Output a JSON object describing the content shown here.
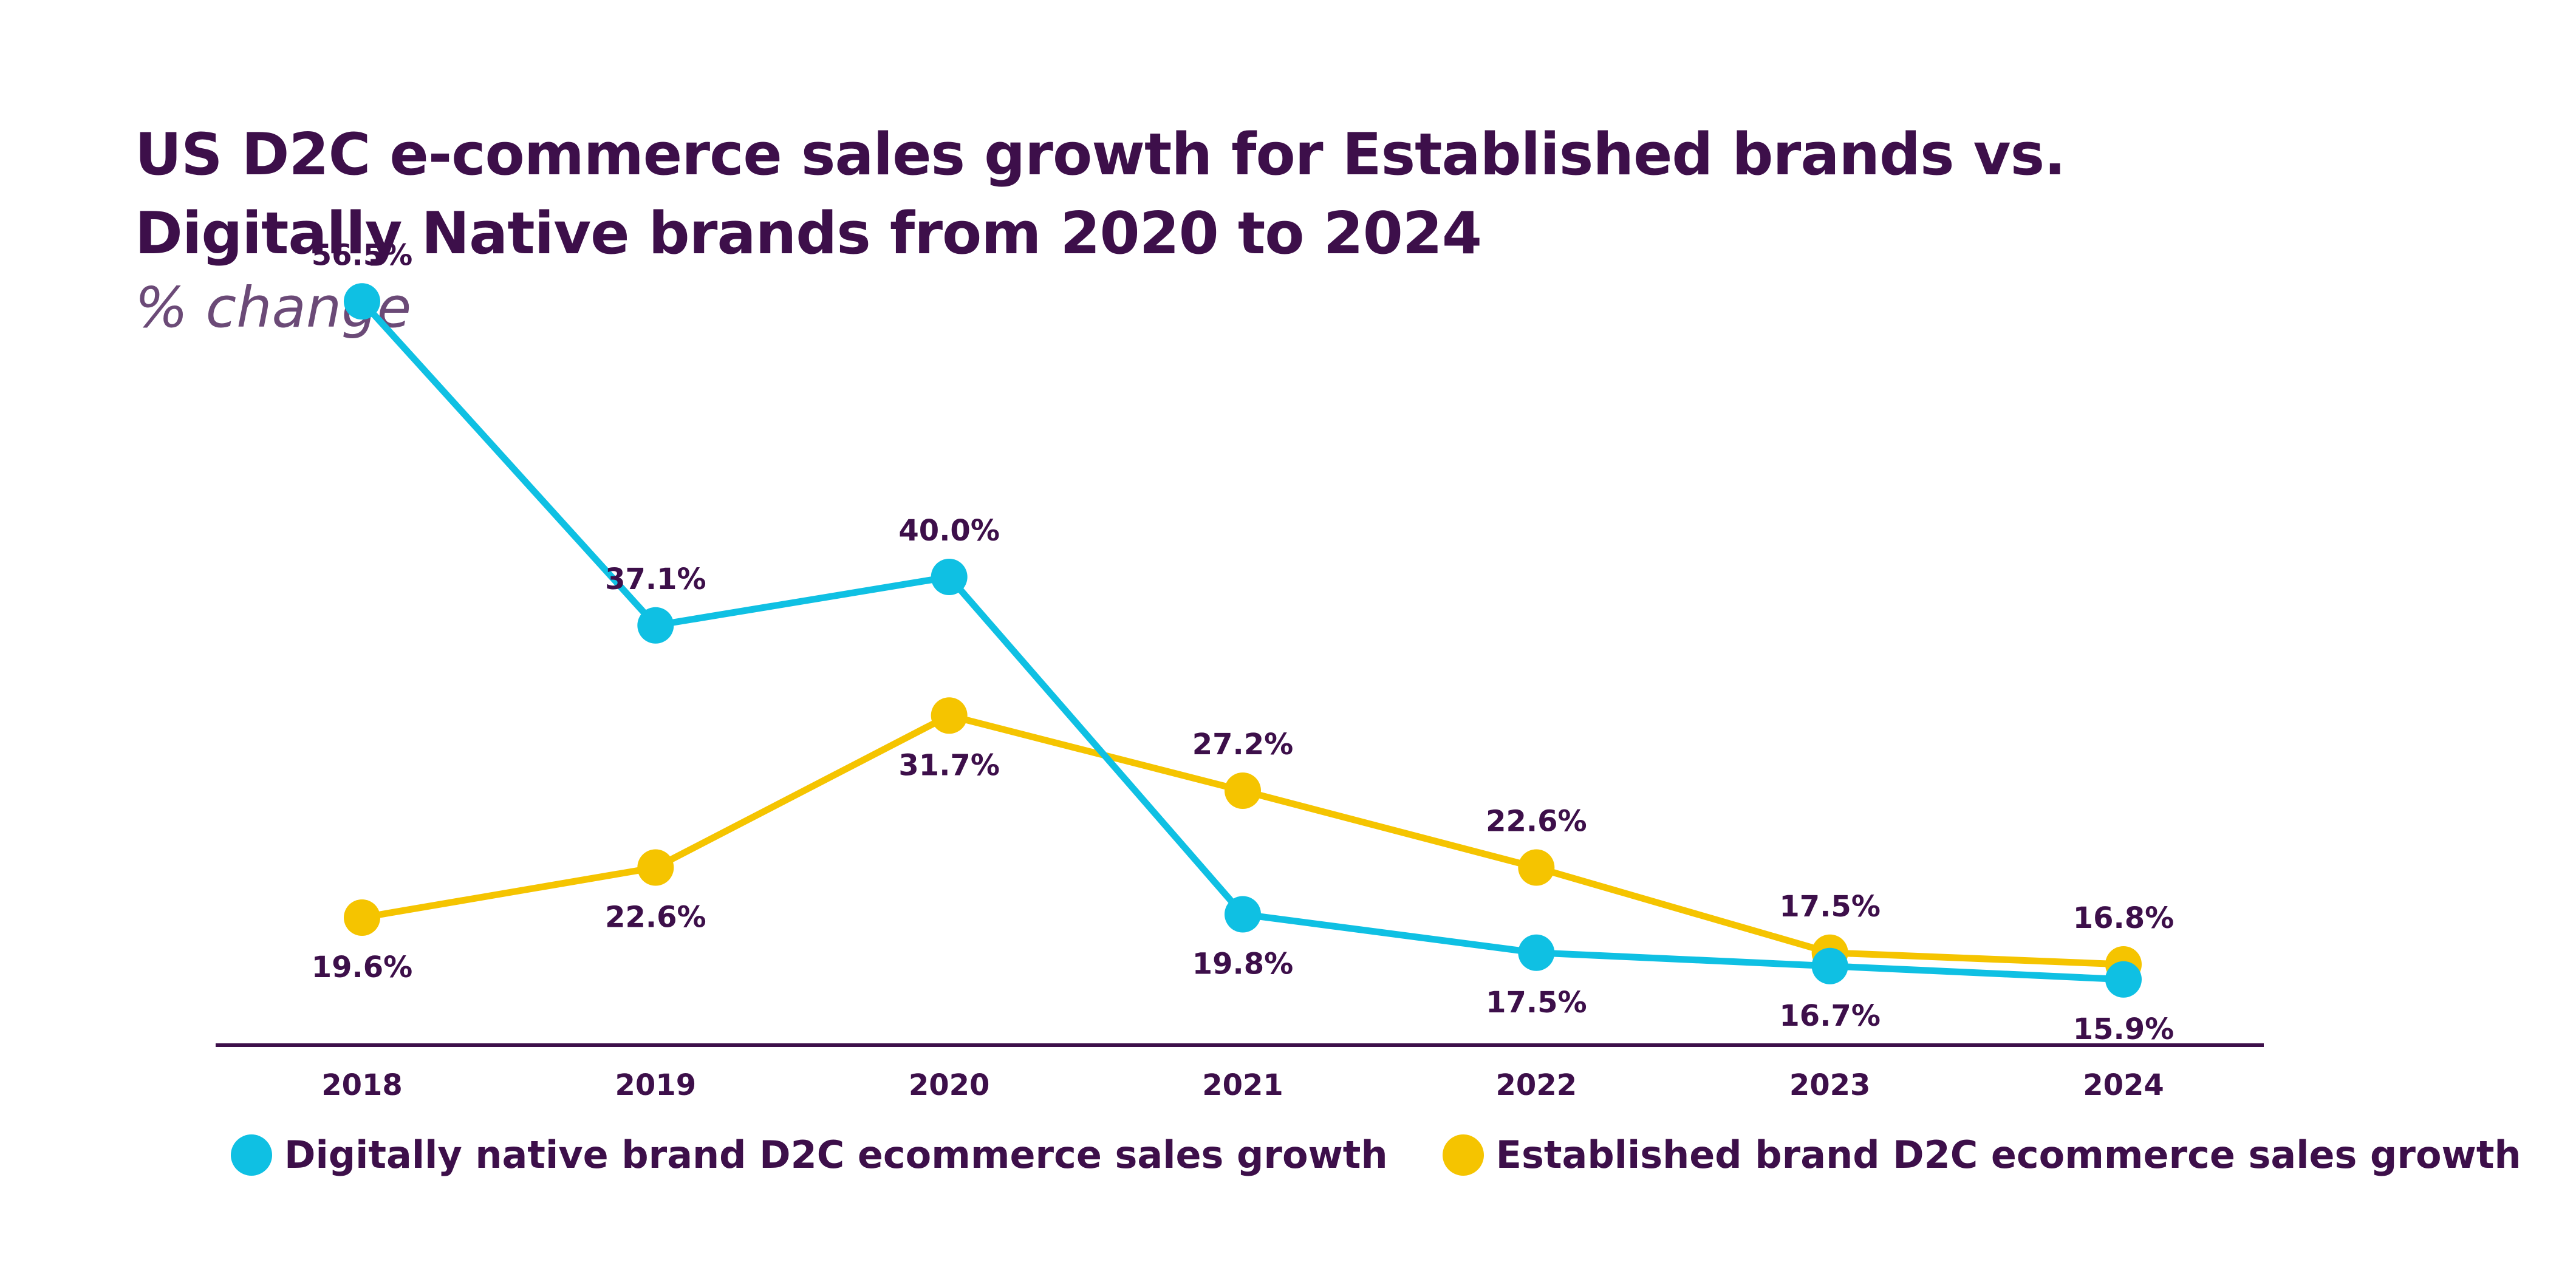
{
  "title": "US D2C e-commerce sales growth for Established brands vs. Digitally Native brands from 2020 to 2024",
  "subtitle": "% change",
  "chart_data": {
    "type": "line",
    "title": "US D2C e-commerce sales growth for Established brands vs. Digitally Native brands from 2020 to 2024",
    "subtitle": "% change",
    "xlabel": "",
    "ylabel": "",
    "x": [
      "2018",
      "2019",
      "2020",
      "2021",
      "2022",
      "2023",
      "2024"
    ],
    "ylim": [
      12,
      60
    ],
    "grid": false,
    "legend_position": "bottom",
    "series": [
      {
        "name": "Digitally native brand D2C ecommerce sales growth",
        "color": "#0fc0e3",
        "values": [
          56.5,
          37.1,
          40.0,
          19.8,
          17.5,
          16.7,
          15.9
        ],
        "labels": [
          "56.5%",
          "37.1%",
          "40.0%",
          "19.8%",
          "17.5%",
          "16.7%",
          "15.9%"
        ],
        "label_side": [
          "above",
          "above",
          "above",
          "below",
          "below",
          "below",
          "below"
        ]
      },
      {
        "name": "Established brand D2C ecommerce sales growth",
        "color": "#f5c400",
        "values": [
          19.6,
          22.6,
          31.7,
          27.2,
          22.6,
          17.5,
          16.8
        ],
        "labels": [
          "19.6%",
          "22.6%",
          "31.7%",
          "27.2%",
          "22.6%",
          "17.5%",
          "16.8%"
        ],
        "label_side": [
          "below",
          "below",
          "below",
          "above",
          "above",
          "above",
          "above"
        ]
      }
    ]
  },
  "colors": {
    "text": "#3d0f4a",
    "axis": "#3d0f4a"
  }
}
